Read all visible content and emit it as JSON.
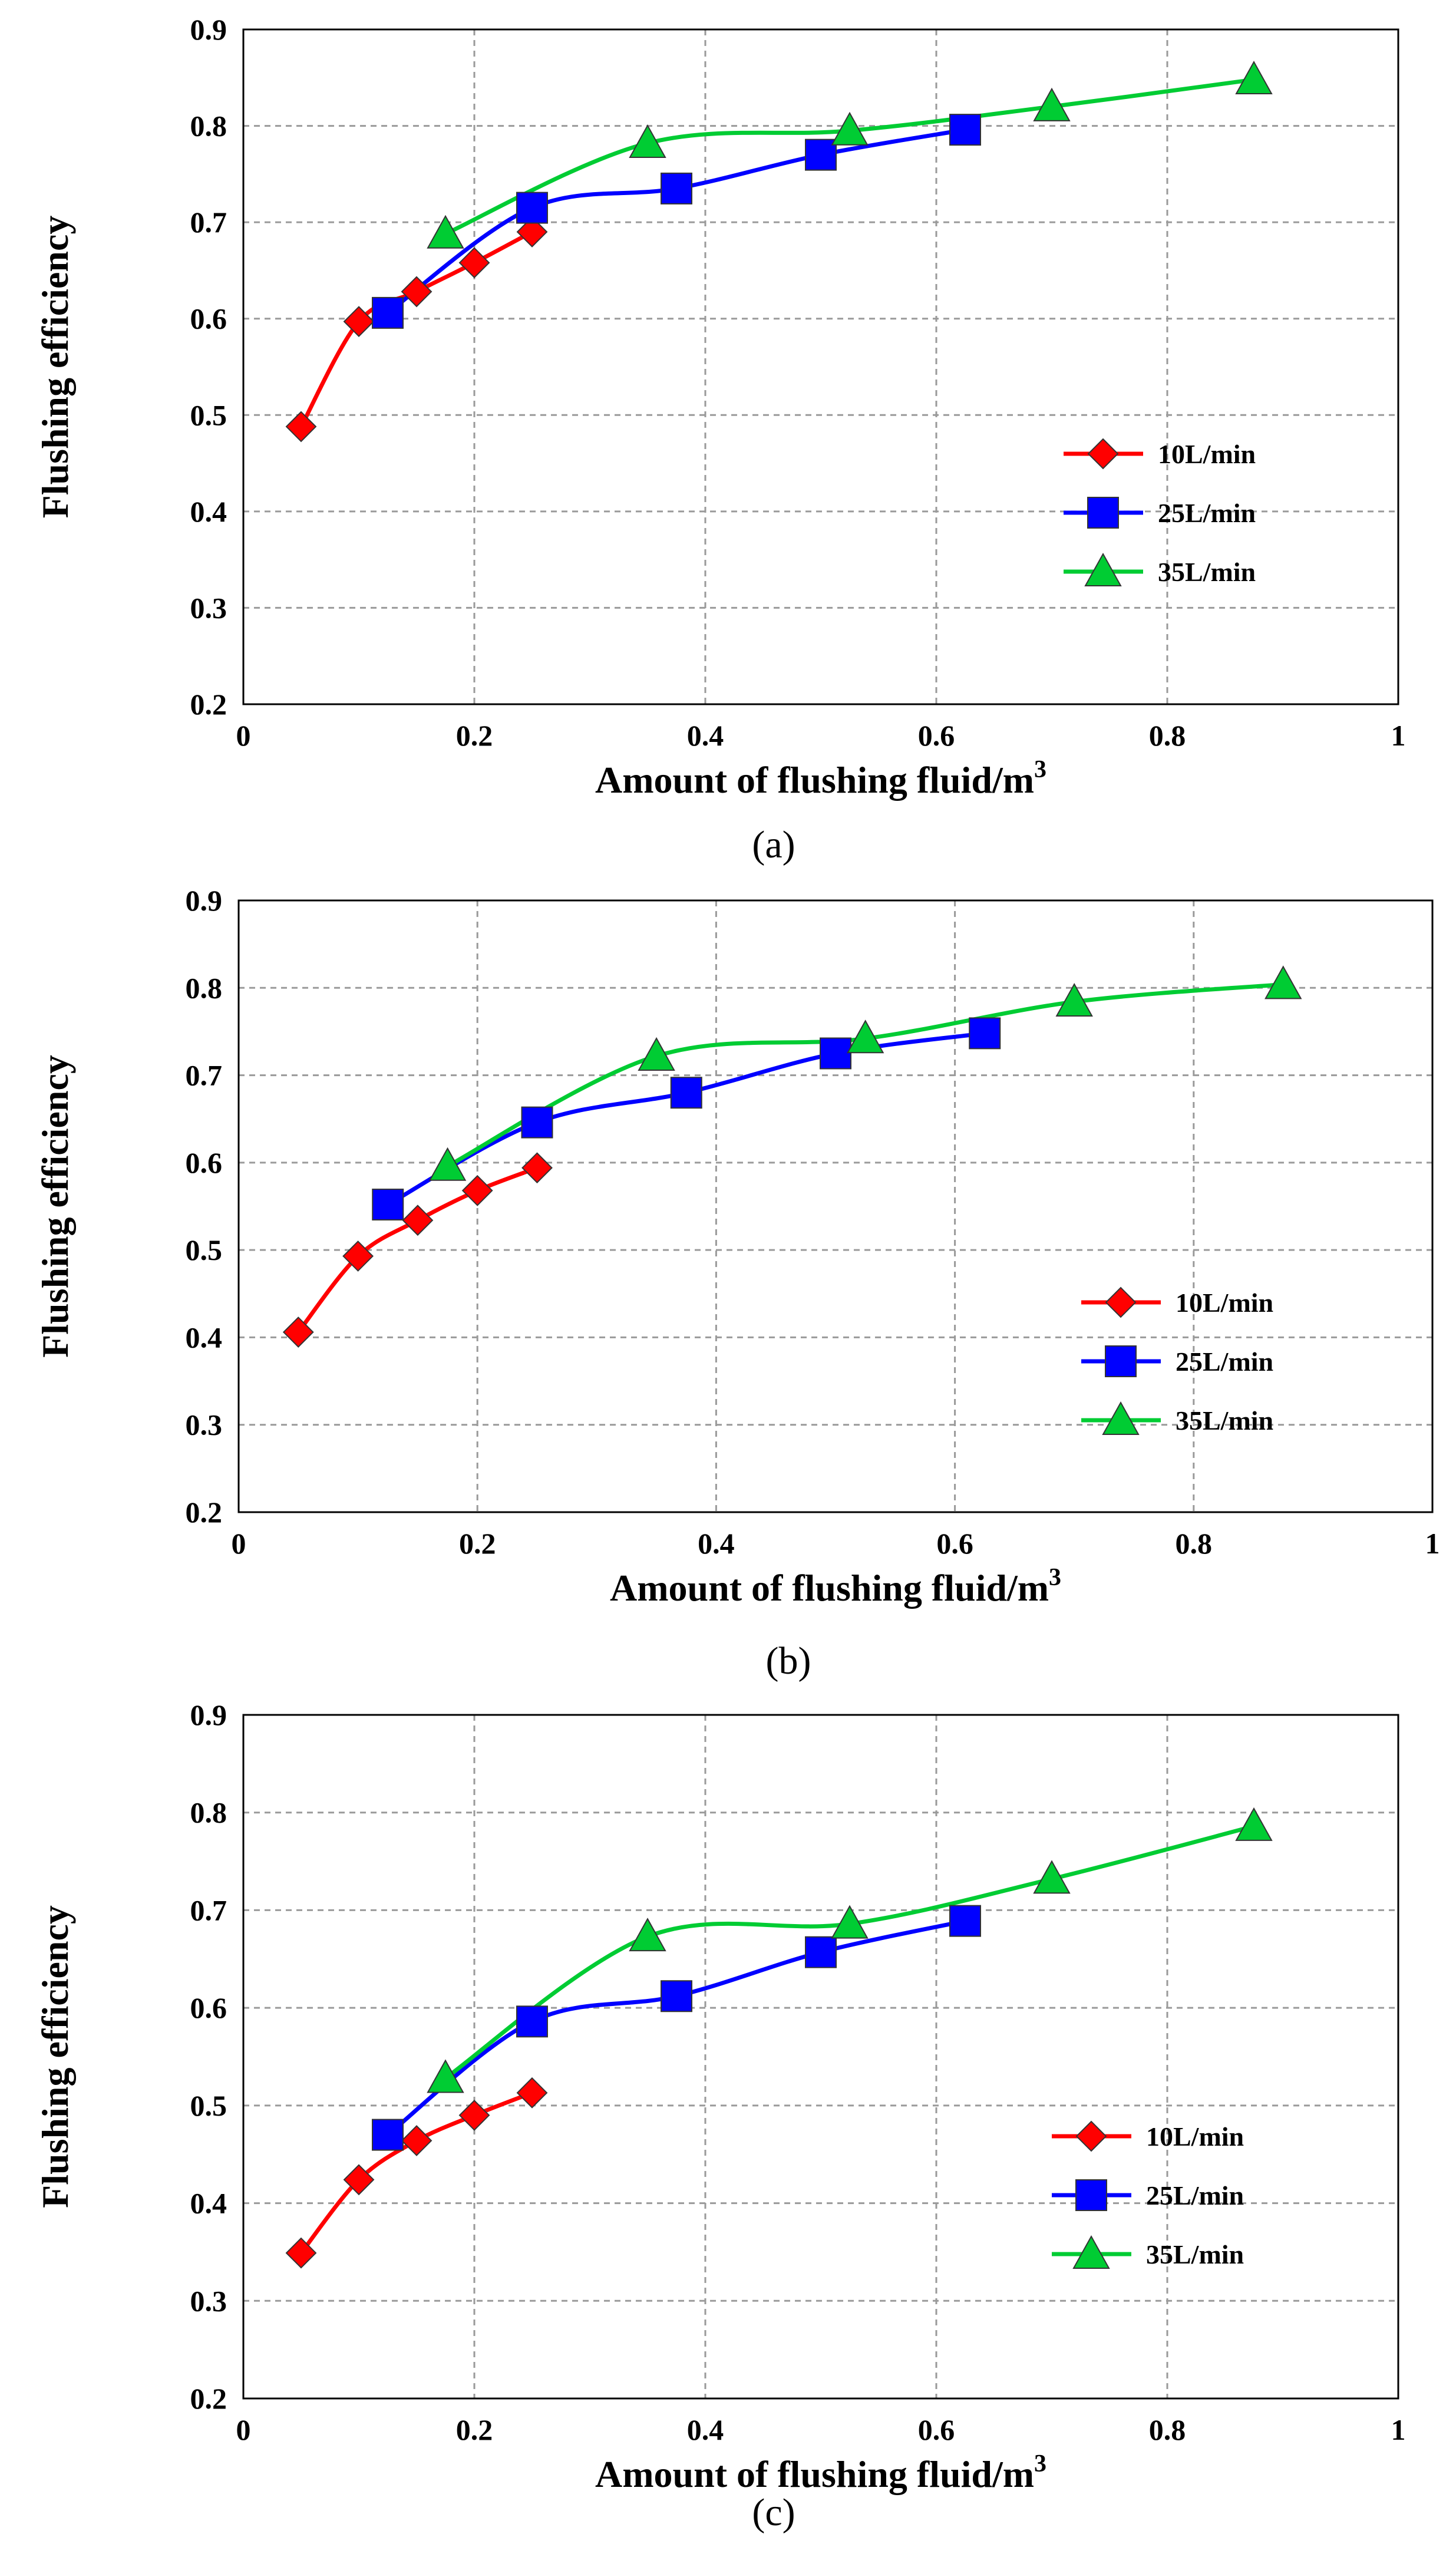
{
  "chart_data": [
    {
      "type": "line",
      "panel_label": "(a)",
      "xlabel": "Amount of flushing fluid/m",
      "xlabel_sup": "3",
      "ylabel": "Flushing efficiency",
      "xlim": [
        0,
        1
      ],
      "ylim": [
        0.2,
        0.9
      ],
      "xticks": [
        "0",
        "0.2",
        "0.4",
        "0.6",
        "0.8",
        "1"
      ],
      "yticks": [
        "0.2",
        "0.3",
        "0.4",
        "0.5",
        "0.6",
        "0.7",
        "0.8",
        "0.9"
      ],
      "grid": true,
      "legend_position": "right",
      "series": [
        {
          "name": "10L/min",
          "color": "#ff0000",
          "marker": "diamond",
          "x": [
            0.05,
            0.1,
            0.15,
            0.2,
            0.25
          ],
          "y": [
            0.488,
            0.597,
            0.628,
            0.658,
            0.69
          ]
        },
        {
          "name": "25L/min",
          "color": "#0000ff",
          "marker": "square",
          "x": [
            0.125,
            0.25,
            0.375,
            0.5,
            0.625
          ],
          "y": [
            0.606,
            0.715,
            0.735,
            0.77,
            0.796
          ]
        },
        {
          "name": "35L/min",
          "color": "#00cc33",
          "marker": "triangle",
          "x": [
            0.175,
            0.35,
            0.525,
            0.7,
            0.875
          ],
          "y": [
            0.688,
            0.782,
            0.795,
            0.82,
            0.848
          ]
        }
      ]
    },
    {
      "type": "line",
      "panel_label": "(b)",
      "xlabel": "Amount of flushing fluid/m",
      "xlabel_sup": "3",
      "ylabel": "Flushing efficiency",
      "xlim": [
        0,
        1
      ],
      "ylim": [
        0.2,
        0.9
      ],
      "xticks": [
        "0",
        "0.2",
        "0.4",
        "0.6",
        "0.8",
        "1"
      ],
      "yticks": [
        "0.2",
        "0.3",
        "0.4",
        "0.5",
        "0.6",
        "0.7",
        "0.8",
        "0.9"
      ],
      "grid": true,
      "legend_position": "right",
      "series": [
        {
          "name": "10L/min",
          "color": "#ff0000",
          "marker": "diamond",
          "x": [
            0.05,
            0.1,
            0.15,
            0.2,
            0.25
          ],
          "y": [
            0.406,
            0.493,
            0.534,
            0.568,
            0.594
          ]
        },
        {
          "name": "25L/min",
          "color": "#0000ff",
          "marker": "square",
          "x": [
            0.125,
            0.25,
            0.375,
            0.5,
            0.625
          ],
          "y": [
            0.552,
            0.646,
            0.68,
            0.725,
            0.748
          ]
        },
        {
          "name": "35L/min",
          "color": "#00cc33",
          "marker": "triangle",
          "x": [
            0.175,
            0.35,
            0.525,
            0.7,
            0.875
          ],
          "y": [
            0.596,
            0.722,
            0.742,
            0.784,
            0.804
          ]
        }
      ]
    },
    {
      "type": "line",
      "panel_label": "(c)",
      "xlabel": "Amount of flushing fluid/m",
      "xlabel_sup": "3",
      "ylabel": "Flushing efficiency",
      "xlim": [
        0,
        1
      ],
      "ylim": [
        0.2,
        0.9
      ],
      "xticks": [
        "0",
        "0.2",
        "0.4",
        "0.6",
        "0.8",
        "1"
      ],
      "yticks": [
        "0.2",
        "0.3",
        "0.4",
        "0.5",
        "0.6",
        "0.7",
        "0.8",
        "0.9"
      ],
      "grid": true,
      "legend_position": "right",
      "series": [
        {
          "name": "10L/min",
          "color": "#ff0000",
          "marker": "diamond",
          "x": [
            0.05,
            0.1,
            0.15,
            0.2,
            0.25
          ],
          "y": [
            0.349,
            0.424,
            0.464,
            0.49,
            0.513
          ]
        },
        {
          "name": "25L/min",
          "color": "#0000ff",
          "marker": "square",
          "x": [
            0.125,
            0.25,
            0.375,
            0.5,
            0.625
          ],
          "y": [
            0.47,
            0.586,
            0.612,
            0.657,
            0.689
          ]
        },
        {
          "name": "35L/min",
          "color": "#00cc33",
          "marker": "triangle",
          "x": [
            0.175,
            0.35,
            0.525,
            0.7,
            0.875
          ],
          "y": [
            0.528,
            0.673,
            0.686,
            0.732,
            0.786
          ]
        }
      ]
    }
  ]
}
